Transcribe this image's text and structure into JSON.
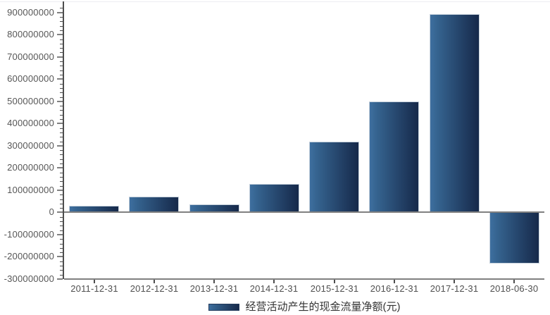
{
  "chart_data": {
    "type": "bar",
    "title": "",
    "xlabel": "",
    "ylabel": "",
    "categories": [
      "2011-12-31",
      "2012-12-31",
      "2013-12-31",
      "2014-12-31",
      "2015-12-31",
      "2016-12-31",
      "2017-12-31",
      "2018-06-30"
    ],
    "series": [
      {
        "name": "经营活动产生的现金流量净额(元)",
        "values": [
          29000000,
          70000000,
          35000000,
          127000000,
          320000000,
          500000000,
          893000000,
          -232000000
        ]
      }
    ],
    "ylim": [
      -300000000,
      950000000
    ],
    "y_ticks": [
      900000000,
      800000000,
      700000000,
      600000000,
      500000000,
      400000000,
      300000000,
      200000000,
      100000000,
      0,
      -100000000,
      -200000000,
      -300000000
    ],
    "y_minor_step": 20000000,
    "grid": false,
    "legend_position": "bottom",
    "colors": {
      "bar_gradient_left": "#3e6f9f",
      "bar_gradient_mid": "#35638f",
      "bar_gradient_right": "#16294a",
      "bar_border": "#c6d1dc",
      "axis_line": "#808080",
      "axis_spine": "#4d4d4d",
      "tick_label": "#565656",
      "legend_text": "#333333"
    }
  }
}
